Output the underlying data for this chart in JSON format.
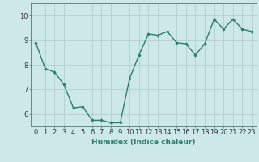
{
  "x": [
    0,
    1,
    2,
    3,
    4,
    5,
    6,
    7,
    8,
    9,
    10,
    11,
    12,
    13,
    14,
    15,
    16,
    17,
    18,
    19,
    20,
    21,
    22,
    23
  ],
  "y": [
    8.9,
    7.85,
    7.7,
    7.2,
    6.25,
    6.3,
    5.75,
    5.75,
    5.65,
    5.65,
    7.45,
    8.4,
    9.25,
    9.2,
    9.35,
    8.9,
    8.85,
    8.4,
    8.85,
    9.85,
    9.45,
    9.85,
    9.45,
    9.35
  ],
  "line_color": "#2e7d6e",
  "marker": "D",
  "marker_size": 1.8,
  "line_width": 1.0,
  "bg_color": "#cce8e8",
  "grid_color": "#b0c8c8",
  "xlabel": "Humidex (Indice chaleur)",
  "xlabel_fontsize": 6.5,
  "tick_fontsize": 6,
  "yticks": [
    6,
    7,
    8,
    9,
    10
  ],
  "xticks": [
    0,
    1,
    2,
    3,
    4,
    5,
    6,
    7,
    8,
    9,
    10,
    11,
    12,
    13,
    14,
    15,
    16,
    17,
    18,
    19,
    20,
    21,
    22,
    23
  ],
  "ylim": [
    5.5,
    10.5
  ],
  "xlim": [
    -0.5,
    23.5
  ]
}
